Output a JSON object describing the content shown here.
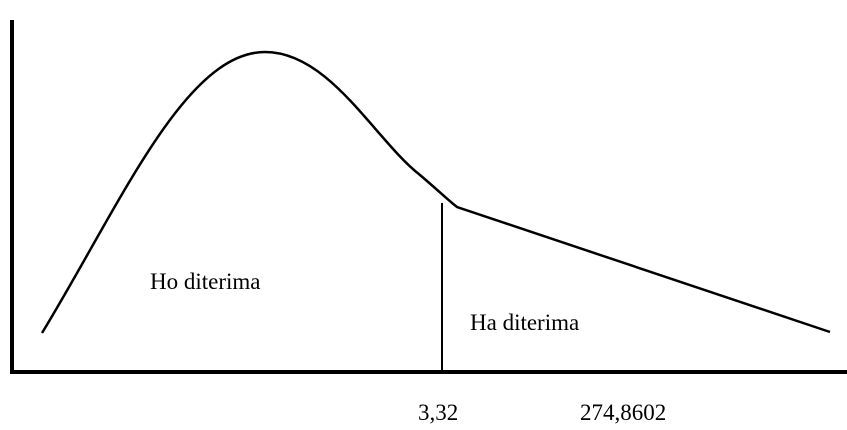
{
  "regions": {
    "accept": "Ho diterima",
    "reject": "Ha diterima"
  },
  "axis_labels": {
    "critical": "3,32",
    "computed": "274,8602"
  }
}
